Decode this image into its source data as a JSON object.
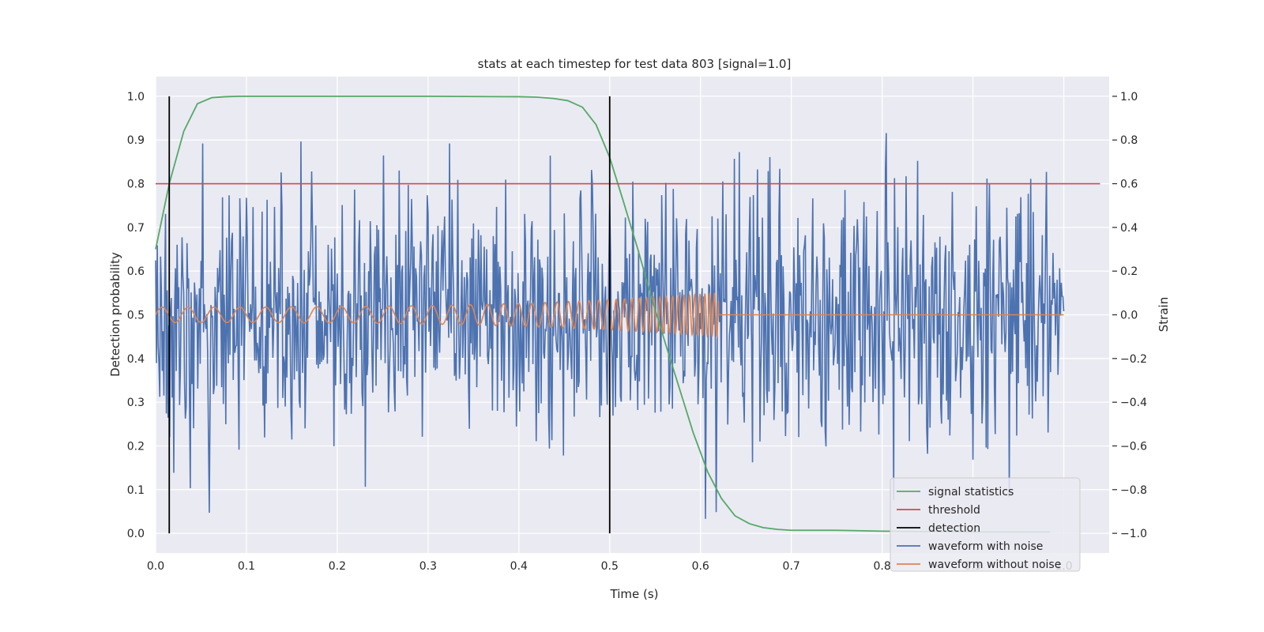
{
  "chart_data": {
    "type": "line",
    "title": "stats at each timestep for test data 803 [signal=1.0]",
    "xlabel": "Time (s)",
    "ylabel_left": "Detection probability",
    "ylabel_right": "Strain",
    "xlim": [
      0.0,
      1.05
    ],
    "ylim_left": [
      -0.045,
      1.045
    ],
    "ylim_right": [
      -1.09,
      1.09
    ],
    "x_ticks": [
      "0.0",
      "0.1",
      "0.2",
      "0.3",
      "0.4",
      "0.5",
      "0.6",
      "0.7",
      "0.8",
      "0.9",
      "1.0"
    ],
    "y_left_ticks": [
      "0.0",
      "0.1",
      "0.2",
      "0.3",
      "0.4",
      "0.5",
      "0.6",
      "0.7",
      "0.8",
      "0.9",
      "1.0"
    ],
    "y_right_ticks": [
      "−1.0",
      "−0.8",
      "−0.6",
      "−0.4",
      "−0.2",
      "0.0",
      "0.2",
      "0.4",
      "0.6",
      "0.8",
      "1.0"
    ],
    "grid": true,
    "legend_position": "lower-right",
    "legend": [
      {
        "label": "signal statistics",
        "color": "#55a868"
      },
      {
        "label": "threshold",
        "color": "#c44e52"
      },
      {
        "label": "detection",
        "color": "#000000"
      },
      {
        "label": "waveform with noise",
        "color": "#4c72b0"
      },
      {
        "label": "waveform without noise",
        "color": "#dd8452"
      }
    ],
    "signal_statistics": {
      "axis": "left",
      "x": [
        0.0,
        0.015,
        0.031,
        0.046,
        0.062,
        0.077,
        0.092,
        0.108,
        0.2,
        0.3,
        0.4,
        0.42,
        0.438,
        0.454,
        0.47,
        0.485,
        0.5,
        0.515,
        0.531,
        0.546,
        0.562,
        0.577,
        0.592,
        0.608,
        0.623,
        0.638,
        0.654,
        0.669,
        0.685,
        0.7,
        0.75,
        0.8,
        0.85,
        0.9,
        0.95,
        0.985
      ],
      "y": [
        0.65,
        0.8,
        0.92,
        0.983,
        0.997,
        0.999,
        1.0,
        1.0,
        1.0,
        1.0,
        0.999,
        0.998,
        0.995,
        0.99,
        0.975,
        0.935,
        0.86,
        0.76,
        0.65,
        0.54,
        0.43,
        0.33,
        0.23,
        0.14,
        0.08,
        0.04,
        0.022,
        0.013,
        0.009,
        0.007,
        0.007,
        0.005,
        0.004,
        0.003,
        0.003,
        0.003
      ]
    },
    "threshold": {
      "axis": "left",
      "y": 0.8,
      "x_range": [
        0.0,
        1.04
      ]
    },
    "detection": {
      "axis": "left",
      "x": [
        0.015,
        0.5
      ],
      "y_range": [
        0.0,
        1.0
      ]
    },
    "waveform_with_noise": {
      "axis": "right",
      "x_range": [
        0.0,
        1.0
      ],
      "std": 0.3,
      "min": -1.0,
      "max": 1.0
    },
    "waveform_without_noise": {
      "axis": "right",
      "x_range": [
        0.0,
        1.0
      ],
      "merger_time": 0.62,
      "max_amplitude": 0.1
    }
  }
}
